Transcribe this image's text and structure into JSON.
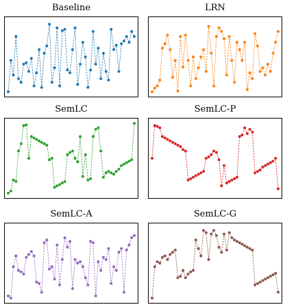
{
  "chart_data": [
    {
      "type": "line",
      "title": "Baseline",
      "color": "#1f77b4",
      "style": "dashed line with dot markers",
      "x": [
        0,
        1,
        2,
        3,
        4,
        5,
        6,
        7,
        8,
        9,
        10,
        11,
        12,
        13,
        14,
        15,
        16,
        17,
        18,
        19,
        20,
        21,
        22,
        23,
        24,
        25,
        26,
        27,
        28,
        29,
        30,
        31,
        32,
        33,
        34,
        35,
        36,
        37,
        38,
        39,
        40,
        41,
        42,
        43,
        44,
        45,
        46,
        47,
        48,
        49
      ],
      "y": [
        0.02,
        0.45,
        0.25,
        0.78,
        0.2,
        0.15,
        0.4,
        0.42,
        0.3,
        0.48,
        0.1,
        0.28,
        0.6,
        0.08,
        0.55,
        0.65,
        0.95,
        0.15,
        0.35,
        0.9,
        0.1,
        0.86,
        0.88,
        0.32,
        0.28,
        0.6,
        0.9,
        0.12,
        0.4,
        0.7,
        0.5,
        0.08,
        0.32,
        0.85,
        0.4,
        0.62,
        0.2,
        0.55,
        0.3,
        0.18,
        0.88,
        0.6,
        0.66,
        0.3,
        0.68,
        0.72,
        0.78,
        0.7,
        0.85,
        0.78
      ]
    },
    {
      "type": "line",
      "title": "LRN",
      "color": "#ff7f0e",
      "style": "dashed line with dot markers",
      "x": [
        0,
        1,
        2,
        3,
        4,
        5,
        6,
        7,
        8,
        9,
        10,
        11,
        12,
        13,
        14,
        15,
        16,
        17,
        18,
        19,
        20,
        21,
        22,
        23,
        24,
        25,
        26,
        27,
        28,
        29,
        30,
        31,
        32,
        33,
        34,
        35,
        36,
        37,
        38,
        39,
        40,
        41,
        42,
        43,
        44,
        45,
        46,
        47,
        48,
        49
      ],
      "y": [
        0.02,
        0.07,
        0.1,
        0.18,
        0.62,
        0.68,
        0.8,
        0.6,
        0.22,
        0.45,
        0.03,
        0.78,
        0.36,
        0.8,
        0.45,
        0.1,
        0.5,
        0.2,
        0.35,
        0.5,
        0.6,
        0.3,
        0.92,
        0.55,
        0.1,
        0.78,
        0.9,
        0.85,
        0.75,
        0.25,
        0.78,
        0.45,
        0.15,
        0.7,
        0.6,
        0.45,
        0.7,
        0.05,
        0.28,
        0.2,
        0.82,
        0.65,
        0.3,
        0.35,
        0.25,
        0.4,
        0.3,
        0.55,
        0.7,
        0.85
      ]
    },
    {
      "type": "line",
      "title": "SemLC",
      "color": "#2ca02c",
      "style": "dashed line with dot markers",
      "x": [
        0,
        1,
        2,
        3,
        4,
        5,
        6,
        7,
        8,
        9,
        10,
        11,
        12,
        13,
        14,
        15,
        16,
        17,
        18,
        19,
        20,
        21,
        22,
        23,
        24,
        25,
        26,
        27,
        28,
        29,
        30,
        31,
        32,
        33,
        34,
        35,
        36,
        37,
        38,
        39,
        40,
        41,
        42,
        43,
        44,
        45,
        46,
        47,
        48,
        49
      ],
      "y": [
        0.02,
        0.05,
        0.2,
        0.18,
        0.6,
        0.7,
        0.95,
        0.96,
        0.5,
        0.8,
        0.78,
        0.76,
        0.74,
        0.72,
        0.7,
        0.68,
        0.48,
        0.5,
        0.1,
        0.12,
        0.14,
        0.16,
        0.18,
        0.55,
        0.58,
        0.6,
        0.5,
        0.45,
        0.8,
        0.25,
        0.55,
        0.2,
        0.22,
        0.8,
        0.9,
        0.92,
        0.6,
        0.24,
        0.3,
        0.32,
        0.3,
        0.28,
        0.32,
        0.35,
        0.4,
        0.42,
        0.44,
        0.46,
        0.48,
        0.98
      ]
    },
    {
      "type": "line",
      "title": "SemLC-P",
      "color": "#d62728",
      "style": "dashed line with dot markers",
      "x": [
        0,
        1,
        2,
        3,
        4,
        5,
        6,
        7,
        8,
        9,
        10,
        11,
        12,
        13,
        14,
        15,
        16,
        17,
        18,
        19,
        20,
        21,
        22,
        23,
        24,
        25,
        26,
        27,
        28,
        29,
        30,
        31,
        32,
        33,
        34,
        35,
        36,
        37,
        38,
        39,
        40,
        41,
        42,
        43,
        44,
        45,
        46,
        47,
        48,
        49
      ],
      "y": [
        0.5,
        0.95,
        0.94,
        0.92,
        0.8,
        0.78,
        0.76,
        0.74,
        0.72,
        0.7,
        0.68,
        0.66,
        0.62,
        0.6,
        0.2,
        0.22,
        0.24,
        0.26,
        0.28,
        0.3,
        0.32,
        0.5,
        0.52,
        0.55,
        0.6,
        0.58,
        0.48,
        0.12,
        0.4,
        0.16,
        0.18,
        0.2,
        0.22,
        0.24,
        0.8,
        0.82,
        0.92,
        0.84,
        0.9,
        0.86,
        0.3,
        0.32,
        0.34,
        0.38,
        0.4,
        0.42,
        0.44,
        0.46,
        0.5,
        0.08
      ]
    },
    {
      "type": "line",
      "title": "SemLC-A",
      "color": "#9467bd",
      "style": "dashed line with dot markers",
      "x": [
        0,
        1,
        2,
        3,
        4,
        5,
        6,
        7,
        8,
        9,
        10,
        11,
        12,
        13,
        14,
        15,
        16,
        17,
        18,
        19,
        20,
        21,
        22,
        23,
        24,
        25,
        26,
        27,
        28,
        29,
        30,
        31,
        32,
        33,
        34,
        35,
        36,
        37,
        38,
        39,
        40,
        41,
        42,
        43,
        44,
        45,
        46,
        47,
        48,
        49
      ],
      "y": [
        0.05,
        0.02,
        0.45,
        0.6,
        0.4,
        0.38,
        0.35,
        0.58,
        0.62,
        0.66,
        0.6,
        0.24,
        0.22,
        0.1,
        0.78,
        0.82,
        0.42,
        0.45,
        0.28,
        0.75,
        0.2,
        0.55,
        0.85,
        0.72,
        0.8,
        0.15,
        0.55,
        0.5,
        0.52,
        0.45,
        0.3,
        0.2,
        0.8,
        0.78,
        0.05,
        0.52,
        0.4,
        0.58,
        0.55,
        0.7,
        0.22,
        0.45,
        0.4,
        0.65,
        0.7,
        0.1,
        0.68,
        0.75,
        0.85,
        0.88
      ]
    },
    {
      "type": "line",
      "title": "SemLC-G",
      "color": "#8c564b",
      "style": "dashed line with dot markers",
      "x": [
        0,
        1,
        2,
        3,
        4,
        5,
        6,
        7,
        8,
        9,
        10,
        11,
        12,
        13,
        14,
        15,
        16,
        17,
        18,
        19,
        20,
        21,
        22,
        23,
        24,
        25,
        26,
        27,
        28,
        29,
        30,
        31,
        32,
        33,
        34,
        35,
        36,
        37,
        38,
        39,
        40,
        41,
        42,
        43,
        44,
        45,
        46,
        47,
        48,
        49
      ],
      "y": [
        0.02,
        0.45,
        0.52,
        0.5,
        0.58,
        0.6,
        0.55,
        0.62,
        0.65,
        0.68,
        0.3,
        0.32,
        0.4,
        0.3,
        0.35,
        0.38,
        0.4,
        0.82,
        0.7,
        0.6,
        0.95,
        0.92,
        0.55,
        0.9,
        0.95,
        0.88,
        0.72,
        0.65,
        0.9,
        0.68,
        0.92,
        0.85,
        0.82,
        0.8,
        0.78,
        0.76,
        0.74,
        0.72,
        0.7,
        0.68,
        0.2,
        0.22,
        0.24,
        0.26,
        0.28,
        0.3,
        0.32,
        0.34,
        0.36,
        0.1
      ]
    }
  ]
}
